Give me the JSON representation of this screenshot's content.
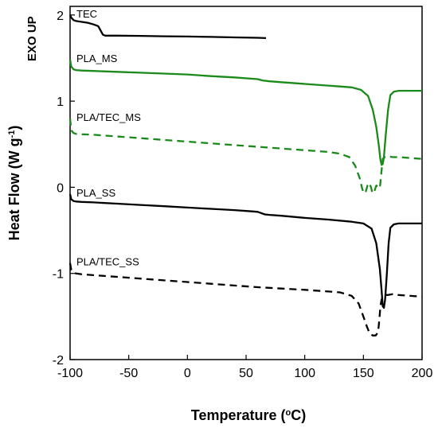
{
  "chart_data": {
    "type": "line",
    "title": "",
    "xlabel": "Temperature (",
    "xlabel_unit": "o",
    "xlabel_end": "C)",
    "ylabel": "Heat Flow (W g",
    "ylabel_sup": "-1",
    "ylabel_end": ")",
    "annotation": "EXO UP",
    "xlim": [
      -100,
      200
    ],
    "ylim": [
      -2,
      2.1
    ],
    "xticks": [
      -100,
      -50,
      0,
      50,
      100,
      150,
      200
    ],
    "yticks": [
      -2,
      -1,
      0,
      1,
      2
    ],
    "series": [
      {
        "name": "TEC",
        "color": "#000000",
        "dash": "solid",
        "x": [
          -100,
          -99,
          -97,
          -95,
          -90,
          -85,
          -80,
          -76,
          -74,
          -72,
          -70,
          -60,
          -40,
          -20,
          0,
          20,
          40,
          60,
          67
        ],
        "y": [
          2.0,
          1.97,
          1.94,
          1.93,
          1.92,
          1.91,
          1.89,
          1.87,
          1.82,
          1.77,
          1.76,
          1.76,
          1.757,
          1.753,
          1.75,
          1.745,
          1.74,
          1.735,
          1.732
        ]
      },
      {
        "name": "PLA_MS",
        "color": "#1a8a1a",
        "dash": "solid",
        "x": [
          -100,
          -99,
          -97,
          -95,
          -90,
          -80,
          -60,
          -40,
          -20,
          0,
          20,
          40,
          60,
          64,
          70,
          80,
          100,
          120,
          130,
          140,
          148,
          154,
          158,
          161,
          163,
          164.5,
          165.5,
          166.5,
          167.5,
          169,
          171,
          173,
          176,
          180,
          190,
          200
        ],
        "y": [
          1.48,
          1.4,
          1.37,
          1.36,
          1.355,
          1.35,
          1.34,
          1.33,
          1.32,
          1.31,
          1.29,
          1.275,
          1.255,
          1.24,
          1.23,
          1.22,
          1.2,
          1.18,
          1.17,
          1.16,
          1.13,
          1.06,
          0.9,
          0.7,
          0.5,
          0.32,
          0.26,
          0.27,
          0.35,
          0.6,
          0.9,
          1.07,
          1.11,
          1.12,
          1.12,
          1.12
        ]
      },
      {
        "name": "PLA/TEC_MS",
        "color": "#1a8a1a",
        "dash": "dashed",
        "x": [
          -100,
          -99,
          -97,
          -95,
          -90,
          -80,
          -60,
          -40,
          -20,
          0,
          20,
          40,
          60,
          80,
          100,
          120,
          130,
          138,
          143,
          147,
          149,
          150.5,
          152,
          153.5,
          155,
          156.5,
          157.5,
          158.5,
          159.5,
          161,
          162.5,
          164,
          165.5,
          166.5,
          168,
          170,
          175,
          180,
          190,
          200
        ],
        "y": [
          0.8,
          0.66,
          0.63,
          0.62,
          0.615,
          0.61,
          0.59,
          0.57,
          0.55,
          0.53,
          0.51,
          0.49,
          0.47,
          0.45,
          0.43,
          0.41,
          0.39,
          0.35,
          0.25,
          0.1,
          -0.02,
          -0.07,
          -0.05,
          0.02,
          0.05,
          0.0,
          -0.06,
          -0.07,
          -0.04,
          0.02,
          0.0,
          -0.01,
          0.2,
          0.33,
          0.35,
          0.36,
          0.35,
          0.35,
          0.34,
          0.33
        ]
      },
      {
        "name": "PLA_SS",
        "color": "#000000",
        "dash": "solid",
        "x": [
          -100,
          -99,
          -97,
          -95,
          -90,
          -80,
          -60,
          -40,
          -20,
          0,
          20,
          40,
          55,
          60,
          63,
          66,
          70,
          80,
          100,
          120,
          140,
          150,
          157,
          161,
          164,
          165.5,
          166.5,
          167.5,
          168.5,
          170,
          171.5,
          173,
          176,
          180,
          190,
          200
        ],
        "y": [
          -0.08,
          -0.14,
          -0.16,
          -0.165,
          -0.17,
          -0.175,
          -0.19,
          -0.205,
          -0.22,
          -0.235,
          -0.25,
          -0.265,
          -0.28,
          -0.285,
          -0.3,
          -0.315,
          -0.32,
          -0.33,
          -0.355,
          -0.375,
          -0.4,
          -0.42,
          -0.48,
          -0.65,
          -0.95,
          -1.2,
          -1.38,
          -1.4,
          -1.3,
          -1.0,
          -0.65,
          -0.47,
          -0.43,
          -0.42,
          -0.42,
          -0.42
        ]
      },
      {
        "name": "PLA/TEC_SS",
        "color": "#000000",
        "dash": "dashed",
        "x": [
          -100,
          -99,
          -97,
          -95,
          -90,
          -80,
          -60,
          -40,
          -20,
          0,
          20,
          40,
          60,
          80,
          100,
          120,
          130,
          140,
          146,
          150,
          153,
          155.5,
          158,
          160.5,
          162.5,
          163.5,
          164.5,
          165.5,
          166.5,
          167.5,
          169,
          171,
          175,
          180,
          190,
          200
        ],
        "y": [
          -0.88,
          -0.96,
          -0.99,
          -1.0,
          -1.01,
          -1.02,
          -1.04,
          -1.06,
          -1.08,
          -1.1,
          -1.12,
          -1.14,
          -1.16,
          -1.175,
          -1.19,
          -1.21,
          -1.22,
          -1.26,
          -1.35,
          -1.5,
          -1.62,
          -1.7,
          -1.72,
          -1.72,
          -1.68,
          -1.55,
          -1.38,
          -1.3,
          -1.28,
          -1.27,
          -1.25,
          -1.25,
          -1.24,
          -1.25,
          -1.26,
          -1.27
        ]
      }
    ],
    "legend": "inline-labels",
    "grid": false
  }
}
